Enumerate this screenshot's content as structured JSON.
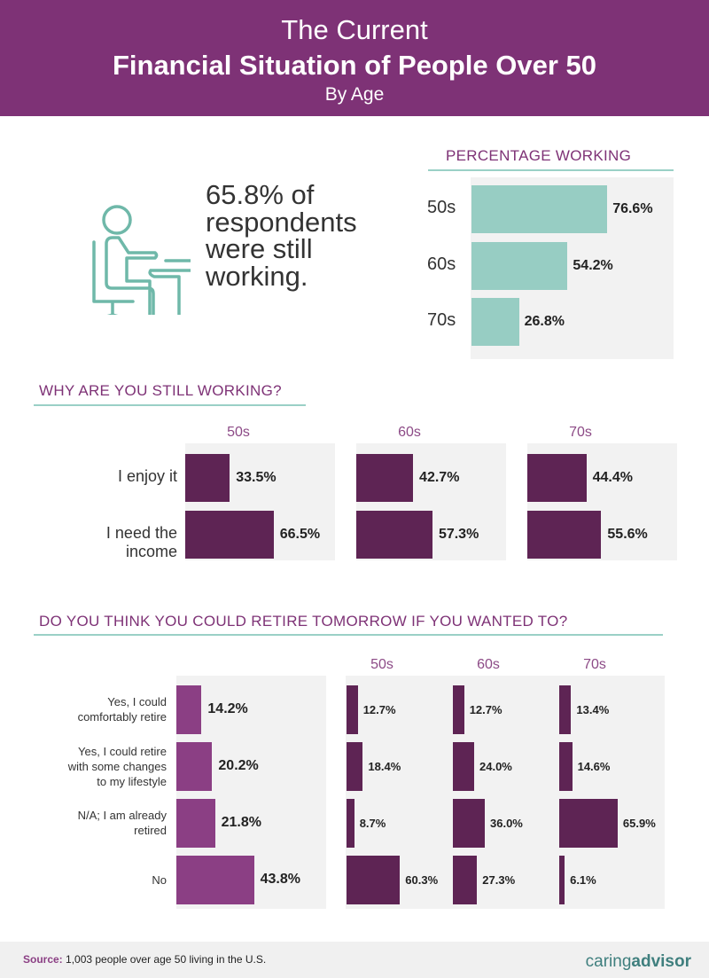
{
  "header": {
    "line1": "The Current",
    "line2": "Financial Situation of People Over 50",
    "line3": "By Age"
  },
  "stat": {
    "line1": "65.8% of",
    "line2": "respondents",
    "line3": "were still",
    "line4": "working."
  },
  "colors": {
    "purple": "#7e3276",
    "teal": "#97cdc3",
    "dark_purple": "#5e2454",
    "mid_purple": "#8b3f84"
  },
  "chart_data": [
    {
      "type": "bar",
      "title": "PERCENTAGE WORKING",
      "categories": [
        "50s",
        "60s",
        "70s"
      ],
      "values": [
        76.6,
        54.2,
        26.8
      ],
      "labels": [
        "76.6%",
        "54.2%",
        "26.8%"
      ]
    },
    {
      "type": "bar",
      "title": "WHY ARE YOU STILL WORKING?",
      "categories": [
        "I enjoy it",
        "I need the income"
      ],
      "groups": [
        "50s",
        "60s",
        "70s"
      ],
      "series": [
        {
          "name": "50s",
          "values": [
            33.5,
            66.5
          ],
          "labels": [
            "33.5%",
            "66.5%"
          ]
        },
        {
          "name": "60s",
          "values": [
            42.7,
            57.3
          ],
          "labels": [
            "42.7%",
            "57.3%"
          ]
        },
        {
          "name": "70s",
          "values": [
            44.4,
            55.6
          ],
          "labels": [
            "44.4%",
            "55.6%"
          ]
        }
      ]
    },
    {
      "type": "bar",
      "title": "DO YOU THINK YOU COULD RETIRE TOMORROW IF YOU WANTED TO?",
      "categories": [
        [
          "Yes, I could",
          "comfortably retire"
        ],
        [
          "Yes, I could retire",
          "with some changes",
          "to my lifestyle"
        ],
        [
          "N/A; I am already",
          "retired"
        ],
        [
          "No"
        ]
      ],
      "overall": {
        "values": [
          14.2,
          20.2,
          21.8,
          43.8
        ],
        "labels": [
          "14.2%",
          "20.2%",
          "21.8%",
          "43.8%"
        ]
      },
      "series": [
        {
          "name": "50s",
          "values": [
            12.7,
            18.4,
            8.7,
            60.3
          ],
          "labels": [
            "12.7%",
            "18.4%",
            "8.7%",
            "60.3%"
          ]
        },
        {
          "name": "60s",
          "values": [
            12.7,
            24.0,
            36.0,
            27.3
          ],
          "labels": [
            "12.7%",
            "24.0%",
            "36.0%",
            "27.3%"
          ]
        },
        {
          "name": "70s",
          "values": [
            13.4,
            14.6,
            65.9,
            6.1
          ],
          "labels": [
            "13.4%",
            "14.6%",
            "65.9%",
            "6.1%"
          ]
        }
      ]
    }
  ],
  "footer": {
    "source_label": "Source:",
    "source_text": " 1,003 people over age 50 living in the U.S.",
    "logo_a": "caring",
    "logo_b": "advisor"
  }
}
